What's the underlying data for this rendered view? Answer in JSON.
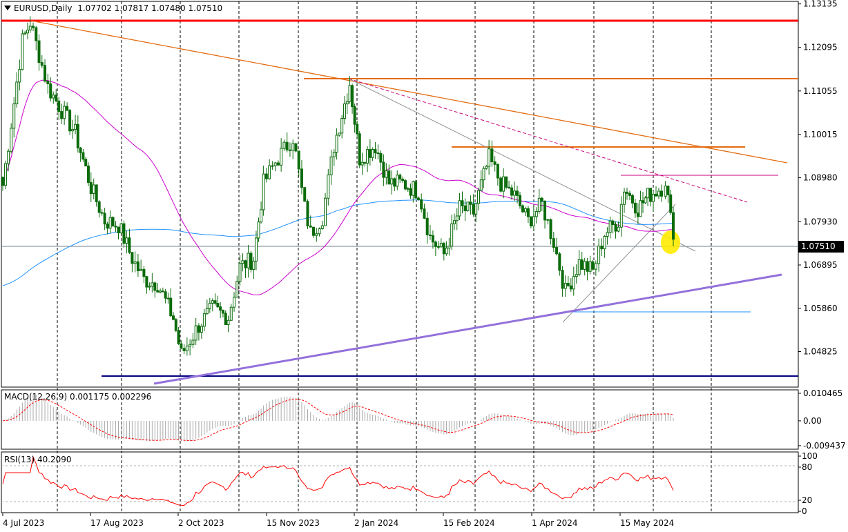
{
  "header": {
    "symbol": "EURUSD",
    "timeframe": "Daily",
    "ohlc": "1.07702 1.07817 1.07480 1.07510"
  },
  "current_price_label": "1.07510",
  "indicators": {
    "macd_label": "MACD(12,26,9) 0.001175 0.002296",
    "rsi_label": "RSI(13) 40.2090"
  },
  "colors": {
    "candle": "#0a6b0a",
    "ma_fast": "#cc00cc",
    "ma_slow": "#1e90ff",
    "resistance_top": "#ff0000",
    "resistance_orange": "#e46b10",
    "support_trend": "#9370db",
    "support_bottom": "#000080",
    "rsi_line": "#ff0000",
    "highlight": "#ffeb00"
  },
  "chart_data": [
    {
      "type": "candlestick",
      "title": "EURUSD,Daily",
      "x_ticks": [
        "4 Jul 2023",
        "17 Aug 2023",
        "2 Oct 2023",
        "15 Nov 2023",
        "2 Jan 2024",
        "15 Feb 2024",
        "1 Apr 2024",
        "15 May 2024"
      ],
      "y_ticks": [
        "1.13135",
        "1.12095",
        "1.11055",
        "1.10015",
        "1.08980",
        "1.07930",
        "1.06895",
        "1.05860",
        "1.04825"
      ],
      "ylim": [
        1.0452,
        1.1313
      ],
      "last_price": 1.0751,
      "series": [
        {
          "x": "2023-07-04",
          "y": 1.088
        },
        {
          "x": "2023-07-14",
          "y": 1.1225
        },
        {
          "x": "2023-07-18",
          "y": 1.127
        },
        {
          "x": "2023-07-27",
          "y": 1.1115
        },
        {
          "x": "2023-08-10",
          "y": 1.1005
        },
        {
          "x": "2023-08-18",
          "y": 1.0875
        },
        {
          "x": "2023-08-25",
          "y": 1.0795
        },
        {
          "x": "2023-09-01",
          "y": 1.0785
        },
        {
          "x": "2023-09-08",
          "y": 1.0705
        },
        {
          "x": "2023-09-14",
          "y": 1.0655
        },
        {
          "x": "2023-09-21",
          "y": 1.0645
        },
        {
          "x": "2023-09-29",
          "y": 1.0562
        },
        {
          "x": "2023-10-03",
          "y": 1.0475
        },
        {
          "x": "2023-10-12",
          "y": 1.0545
        },
        {
          "x": "2023-10-19",
          "y": 1.0585
        },
        {
          "x": "2023-10-27",
          "y": 1.0565
        },
        {
          "x": "2023-11-02",
          "y": 1.0685
        },
        {
          "x": "2023-11-09",
          "y": 1.0705
        },
        {
          "x": "2023-11-14",
          "y": 1.0885
        },
        {
          "x": "2023-11-20",
          "y": 1.0935
        },
        {
          "x": "2023-11-29",
          "y": 1.0995
        },
        {
          "x": "2023-12-05",
          "y": 1.0825
        },
        {
          "x": "2023-12-08",
          "y": 1.0765
        },
        {
          "x": "2023-12-14",
          "y": 1.0805
        },
        {
          "x": "2023-12-20",
          "y": 1.0975
        },
        {
          "x": "2023-12-28",
          "y": 1.1125
        },
        {
          "x": "2024-01-02",
          "y": 1.0945
        },
        {
          "x": "2024-01-10",
          "y": 1.0975
        },
        {
          "x": "2024-01-17",
          "y": 1.0885
        },
        {
          "x": "2024-01-24",
          "y": 1.0885
        },
        {
          "x": "2024-02-01",
          "y": 1.0865
        },
        {
          "x": "2024-02-07",
          "y": 1.0755
        },
        {
          "x": "2024-02-14",
          "y": 1.0715
        },
        {
          "x": "2024-02-22",
          "y": 1.0825
        },
        {
          "x": "2024-02-29",
          "y": 1.0815
        },
        {
          "x": "2024-03-08",
          "y": 1.0945
        },
        {
          "x": "2024-03-14",
          "y": 1.0885
        },
        {
          "x": "2024-03-21",
          "y": 1.0855
        },
        {
          "x": "2024-03-28",
          "y": 1.0795
        },
        {
          "x": "2024-04-04",
          "y": 1.0835
        },
        {
          "x": "2024-04-10",
          "y": 1.0745
        },
        {
          "x": "2024-04-16",
          "y": 1.0625
        },
        {
          "x": "2024-04-23",
          "y": 1.0695
        },
        {
          "x": "2024-04-30",
          "y": 1.0675
        },
        {
          "x": "2024-05-06",
          "y": 1.0765
        },
        {
          "x": "2024-05-13",
          "y": 1.0795
        },
        {
          "x": "2024-05-16",
          "y": 1.0875
        },
        {
          "x": "2024-05-23",
          "y": 1.0825
        },
        {
          "x": "2024-05-28",
          "y": 1.0855
        },
        {
          "x": "2024-06-04",
          "y": 1.0875
        },
        {
          "x": "2024-06-06",
          "y": 1.0895
        },
        {
          "x": "2024-06-10",
          "y": 1.0751
        }
      ]
    },
    {
      "type": "line",
      "title": "MACD(12,26,9) 0.001175 0.002296",
      "y_ticks": [
        "0.010465",
        "0.00",
        "-0.009437"
      ],
      "ylim": [
        -0.0105,
        0.0115
      ]
    },
    {
      "type": "line",
      "title": "RSI(13) 40.2090",
      "y_ticks": [
        "100",
        "80",
        "20",
        "0"
      ],
      "ylim": [
        0,
        100
      ]
    }
  ]
}
